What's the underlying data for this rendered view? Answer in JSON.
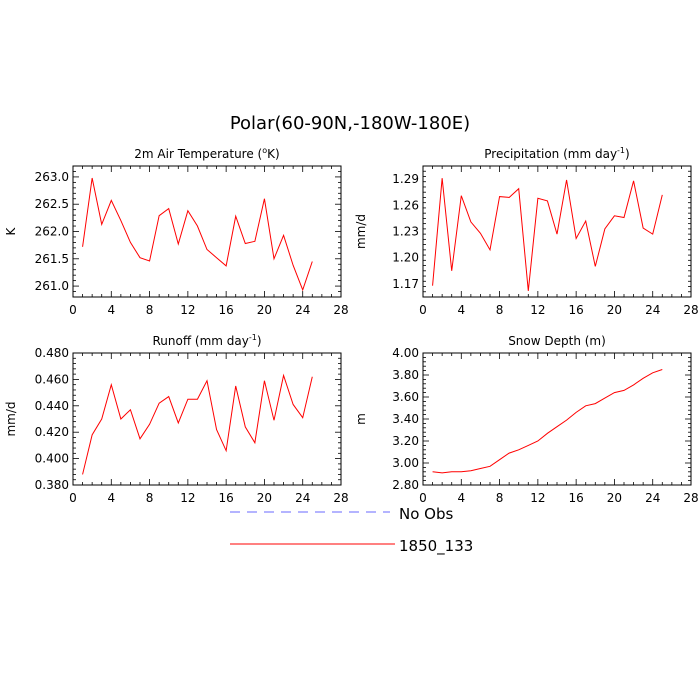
{
  "title": "Polar(60-90N,-180W-180E)",
  "chart_data": [
    {
      "type": "line",
      "title": "2m Air Temperature",
      "title_unit": "K",
      "title_unit_sup": "o",
      "ylabel": "K",
      "xlim": [
        0,
        28
      ],
      "ylim": [
        260.8,
        263.2
      ],
      "xticks": [
        0,
        4,
        8,
        12,
        16,
        20,
        24,
        28
      ],
      "yticks": [
        261.0,
        261.5,
        262.0,
        262.5,
        263.0
      ],
      "ytick_labels": [
        "261.0",
        "261.5",
        "262.0",
        "262.5",
        "263.0"
      ],
      "x": [
        1,
        2,
        3,
        4,
        5,
        6,
        7,
        8,
        9,
        10,
        11,
        12,
        13,
        14,
        15,
        16,
        17,
        18,
        19,
        20,
        21,
        22,
        23,
        24,
        25
      ],
      "series": [
        {
          "name": "1850_133",
          "color": "#ff0000",
          "values": [
            261.72,
            262.98,
            262.13,
            262.57,
            262.2,
            261.8,
            261.52,
            261.46,
            262.29,
            262.42,
            261.77,
            262.38,
            262.1,
            261.67,
            261.52,
            261.37,
            262.28,
            261.78,
            261.82,
            262.6,
            261.5,
            261.93,
            261.38,
            260.93,
            261.45
          ]
        }
      ]
    },
    {
      "type": "line",
      "title": "Precipitation",
      "title_unit": "mm day",
      "title_unit_sup": "-1",
      "ylabel": "mm/d",
      "xlim": [
        0,
        28
      ],
      "ylim": [
        1.155,
        1.305
      ],
      "xticks": [
        0,
        4,
        8,
        12,
        16,
        20,
        24,
        28
      ],
      "yticks": [
        1.17,
        1.2,
        1.23,
        1.26,
        1.29
      ],
      "ytick_labels": [
        "1.17",
        "1.20",
        "1.23",
        "1.26",
        "1.29"
      ],
      "x": [
        1,
        2,
        3,
        4,
        5,
        6,
        7,
        8,
        9,
        10,
        11,
        12,
        13,
        14,
        15,
        16,
        17,
        18,
        19,
        20,
        21,
        22,
        23,
        24,
        25
      ],
      "series": [
        {
          "name": "1850_133",
          "color": "#ff0000",
          "values": [
            1.168,
            1.291,
            1.185,
            1.271,
            1.241,
            1.228,
            1.209,
            1.27,
            1.269,
            1.279,
            1.162,
            1.268,
            1.265,
            1.227,
            1.289,
            1.222,
            1.242,
            1.19,
            1.233,
            1.248,
            1.246,
            1.288,
            1.234,
            1.227,
            1.272
          ]
        }
      ]
    },
    {
      "type": "line",
      "title": "Runoff",
      "title_unit": "mm day",
      "title_unit_sup": "-1",
      "ylabel": "mm/d",
      "xlim": [
        0,
        28
      ],
      "ylim": [
        0.38,
        0.48
      ],
      "xticks": [
        0,
        4,
        8,
        12,
        16,
        20,
        24,
        28
      ],
      "yticks": [
        0.38,
        0.4,
        0.42,
        0.44,
        0.46,
        0.48
      ],
      "ytick_labels": [
        "0.380",
        "0.400",
        "0.420",
        "0.440",
        "0.460",
        "0.480"
      ],
      "x": [
        1,
        2,
        3,
        4,
        5,
        6,
        7,
        8,
        9,
        10,
        11,
        12,
        13,
        14,
        15,
        16,
        17,
        18,
        19,
        20,
        21,
        22,
        23,
        24,
        25
      ],
      "series": [
        {
          "name": "1850_133",
          "color": "#ff0000",
          "values": [
            0.388,
            0.418,
            0.43,
            0.456,
            0.43,
            0.437,
            0.415,
            0.426,
            0.442,
            0.447,
            0.427,
            0.445,
            0.445,
            0.459,
            0.422,
            0.406,
            0.455,
            0.424,
            0.412,
            0.459,
            0.429,
            0.463,
            0.441,
            0.431,
            0.462
          ]
        }
      ]
    },
    {
      "type": "line",
      "title": "Snow Depth (m)",
      "title_unit": "",
      "title_unit_sup": "",
      "ylabel": "m",
      "xlim": [
        0,
        28
      ],
      "ylim": [
        2.8,
        4.0
      ],
      "xticks": [
        0,
        4,
        8,
        12,
        16,
        20,
        24,
        28
      ],
      "yticks": [
        2.8,
        3.0,
        3.2,
        3.4,
        3.6,
        3.8,
        4.0
      ],
      "ytick_labels": [
        "2.80",
        "3.00",
        "3.20",
        "3.40",
        "3.60",
        "3.80",
        "4.00"
      ],
      "x": [
        1,
        2,
        3,
        4,
        5,
        6,
        7,
        8,
        9,
        10,
        11,
        12,
        13,
        14,
        15,
        16,
        17,
        18,
        19,
        20,
        21,
        22,
        23,
        24,
        25
      ],
      "series": [
        {
          "name": "1850_133",
          "color": "#ff0000",
          "values": [
            2.92,
            2.91,
            2.92,
            2.92,
            2.93,
            2.95,
            2.97,
            3.03,
            3.09,
            3.12,
            3.16,
            3.2,
            3.27,
            3.33,
            3.39,
            3.46,
            3.52,
            3.54,
            3.59,
            3.64,
            3.66,
            3.71,
            3.77,
            3.82,
            3.85
          ]
        }
      ]
    }
  ],
  "legend": [
    {
      "label": "No Obs",
      "color": "#6a6aff",
      "style": "dashed"
    },
    {
      "label": "1850_133",
      "color": "#ff0000",
      "style": "solid"
    }
  ]
}
